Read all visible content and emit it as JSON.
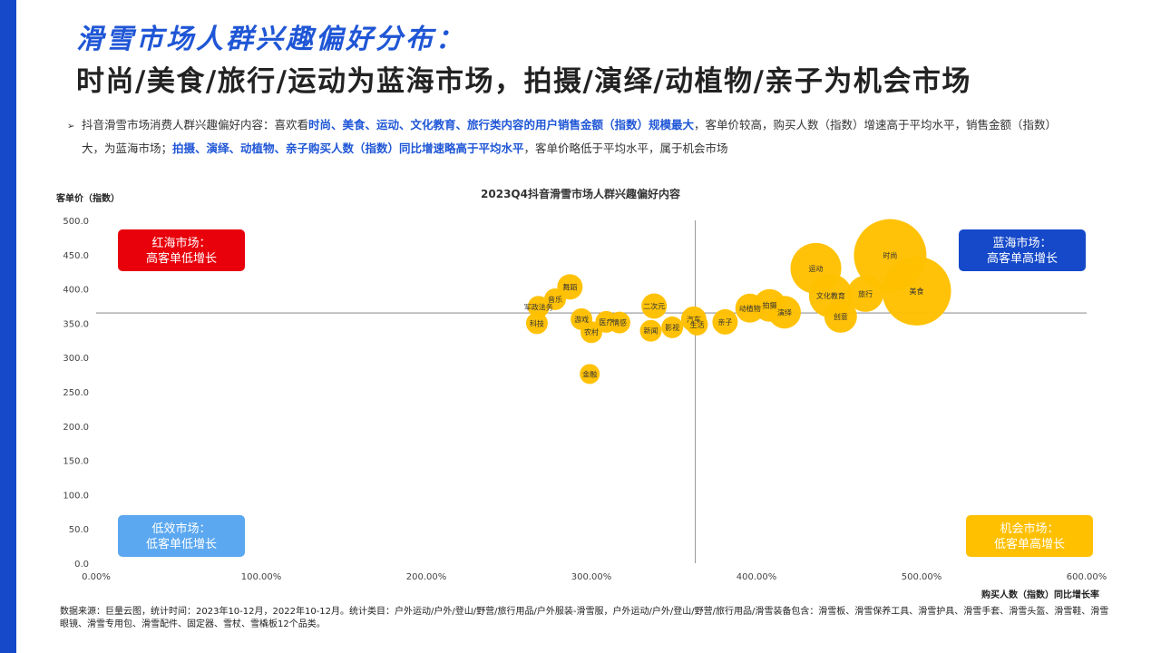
{
  "header": {
    "title_line1": "滑雪市场人群兴趣偏好分布：",
    "title_line2": "时尚/美食/旅行/运动为蓝海市场，拍摄/演绎/动植物/亲子为机会市场"
  },
  "summary": {
    "bullet": "➢",
    "part1": "抖音滑雪市场消费人群兴趣偏好内容：喜欢看",
    "hl1": "时尚、美食、运动、文化教育、旅行类内容的用户销售金额（指数）规模最大",
    "part2": "，客单价较高，购买人数（指数）增速高于平均水平，销售金额（指数）",
    "part3": "大，为蓝海市场；",
    "hl2": "拍摄、演绎、动植物、亲子购买人数（指数）同比增速略高于平均水平",
    "part4": "，客单价略低于平均水平，属于机会市场"
  },
  "source": "数据来源：巨量云图，统计时间：2023年10-12月，2022年10-12月。统计类目：户外运动/户外/登山/野营/旅行用品/户外服装-滑雪服，户外运动/户外/登山/野营/旅行用品/滑雪装备包含：滑雪板、滑雪保养工具、滑雪护具、滑雪手套、滑雪头盔、滑雪鞋、滑雪眼镜、滑雪专用包、滑雪配件、固定器、雪杖、雪橇板12个品类。",
  "colors": {
    "accent": "#1f56d6",
    "bubble": "#FFC000",
    "red": "#E8000B",
    "blue": "#1549C9",
    "lightblue": "#5BA8F0",
    "yellow": "#FFC000"
  },
  "chart_data": {
    "type": "scatter",
    "title": "2023Q4抖音滑雪市场人群兴趣偏好内容",
    "xlabel": "购买人数（指数）同比增长率",
    "ylabel": "客单价（指数）",
    "xlim": [
      0,
      600
    ],
    "ylim": [
      0,
      500
    ],
    "x_ticks": [
      "0.00%",
      "100.00%",
      "200.00%",
      "300.00%",
      "400.00%",
      "500.00%",
      "600.00%"
    ],
    "y_ticks": [
      "0.0",
      "50.0",
      "100.0",
      "150.0",
      "200.0",
      "250.0",
      "300.0",
      "350.0",
      "400.0",
      "450.0",
      "500.0"
    ],
    "reference_lines": {
      "x": 363,
      "y": 365
    },
    "quadrants": [
      {
        "name": "red-sea",
        "line1": "红海市场：",
        "line2": "高客单低增长",
        "color": "#E8000B"
      },
      {
        "name": "blue-sea",
        "line1": "蓝海市场：",
        "line2": "高客单高增长",
        "color": "#1549C9"
      },
      {
        "name": "low-efficiency",
        "line1": "低效市场：",
        "line2": "低客单低增长",
        "color": "#5BA8F0"
      },
      {
        "name": "opportunity",
        "line1": "机会市场：",
        "line2": "低客单高增长",
        "color": "#FFC000"
      }
    ],
    "points": [
      {
        "label": "时尚",
        "x": 481,
        "y": 449,
        "size": 40
      },
      {
        "label": "美食",
        "x": 497,
        "y": 397,
        "size": 38
      },
      {
        "label": "运动",
        "x": 436,
        "y": 430,
        "size": 28
      },
      {
        "label": "文化教育",
        "x": 445,
        "y": 390,
        "size": 24
      },
      {
        "label": "旅行",
        "x": 466,
        "y": 393,
        "size": 20
      },
      {
        "label": "创意",
        "x": 451,
        "y": 360,
        "size": 18
      },
      {
        "label": "拍摄",
        "x": 408,
        "y": 376,
        "size": 18
      },
      {
        "label": "演绎",
        "x": 417,
        "y": 366,
        "size": 18
      },
      {
        "label": "动植物",
        "x": 396,
        "y": 372,
        "size": 16
      },
      {
        "label": "亲子",
        "x": 381,
        "y": 352,
        "size": 14
      },
      {
        "label": "汽车",
        "x": 362,
        "y": 356,
        "size": 14
      },
      {
        "label": "生活",
        "x": 364,
        "y": 348,
        "size": 12
      },
      {
        "label": "影视",
        "x": 349,
        "y": 344,
        "size": 12
      },
      {
        "label": "新闻",
        "x": 336,
        "y": 339,
        "size": 12
      },
      {
        "label": "二次元",
        "x": 338,
        "y": 375,
        "size": 14
      },
      {
        "label": "情感",
        "x": 317,
        "y": 351,
        "size": 12
      },
      {
        "label": "医疗",
        "x": 309,
        "y": 352,
        "size": 12
      },
      {
        "label": "农村",
        "x": 300,
        "y": 337,
        "size": 12
      },
      {
        "label": "游戏",
        "x": 294,
        "y": 356,
        "size": 12
      },
      {
        "label": "舞蹈",
        "x": 287,
        "y": 403,
        "size": 14
      },
      {
        "label": "音乐",
        "x": 278,
        "y": 385,
        "size": 12
      },
      {
        "label": "军政法务",
        "x": 268,
        "y": 374,
        "size": 12
      },
      {
        "label": "科技",
        "x": 267,
        "y": 350,
        "size": 12
      },
      {
        "label": "金融",
        "x": 299,
        "y": 276,
        "size": 11
      }
    ]
  }
}
